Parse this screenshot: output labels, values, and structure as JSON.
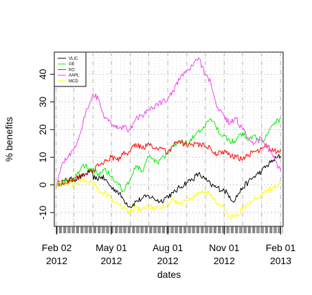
{
  "chart_data": {
    "type": "line",
    "title": "",
    "xlabel": "dates",
    "ylabel": "% benefits",
    "x_ticks": [
      {
        "date": "2012-02-02",
        "line1": "Feb 02",
        "line2": "2012"
      },
      {
        "date": "2012-05-01",
        "line1": "May 01",
        "line2": "2012"
      },
      {
        "date": "2012-08-01",
        "line1": "Aug 01",
        "line2": "2012"
      },
      {
        "date": "2012-11-01",
        "line1": "Nov 01",
        "line2": "2012"
      },
      {
        "date": "2013-02-01",
        "line1": "Feb 01",
        "line2": "2013"
      }
    ],
    "y_ticks": [
      "-10",
      "0",
      "10",
      "20",
      "30",
      "40"
    ],
    "xlim": [
      "2012-01-29",
      "2013-02-05"
    ],
    "ylim": [
      -15,
      48
    ],
    "grid": true,
    "legend_position": "top-left",
    "series": [
      {
        "name": "VLIC",
        "color": "#000000",
        "points": [
          [
            "2012-02-01",
            0
          ],
          [
            "2012-02-15",
            1.5
          ],
          [
            "2012-03-01",
            2
          ],
          [
            "2012-03-15",
            3
          ],
          [
            "2012-03-27",
            5
          ],
          [
            "2012-04-05",
            2
          ],
          [
            "2012-04-15",
            3
          ],
          [
            "2012-04-25",
            1
          ],
          [
            "2012-05-01",
            -1
          ],
          [
            "2012-05-10",
            -2
          ],
          [
            "2012-05-20",
            -5
          ],
          [
            "2012-06-01",
            -8
          ],
          [
            "2012-06-10",
            -6
          ],
          [
            "2012-06-20",
            -5
          ],
          [
            "2012-07-01",
            -4
          ],
          [
            "2012-07-10",
            -5
          ],
          [
            "2012-07-20",
            -6
          ],
          [
            "2012-08-01",
            -4
          ],
          [
            "2012-08-10",
            -3
          ],
          [
            "2012-08-20",
            -1
          ],
          [
            "2012-09-01",
            1
          ],
          [
            "2012-09-10",
            2
          ],
          [
            "2012-09-20",
            4
          ],
          [
            "2012-10-01",
            2
          ],
          [
            "2012-10-10",
            0
          ],
          [
            "2012-10-20",
            -1
          ],
          [
            "2012-11-01",
            -2
          ],
          [
            "2012-11-10",
            -4
          ],
          [
            "2012-11-15",
            -6
          ],
          [
            "2012-11-25",
            -3
          ],
          [
            "2012-12-01",
            -1
          ],
          [
            "2012-12-10",
            1
          ],
          [
            "2012-12-20",
            3
          ],
          [
            "2013-01-01",
            5
          ],
          [
            "2013-01-10",
            7
          ],
          [
            "2013-01-20",
            9
          ],
          [
            "2013-02-01",
            10.5
          ]
        ]
      },
      {
        "name": "GE",
        "color": "#00ee00",
        "points": [
          [
            "2012-02-01",
            0
          ],
          [
            "2012-02-15",
            1
          ],
          [
            "2012-03-01",
            2
          ],
          [
            "2012-03-15",
            7
          ],
          [
            "2012-03-30",
            6
          ],
          [
            "2012-04-10",
            4
          ],
          [
            "2012-04-20",
            6
          ],
          [
            "2012-05-01",
            3
          ],
          [
            "2012-05-10",
            1
          ],
          [
            "2012-05-20",
            -2
          ],
          [
            "2012-06-01",
            2
          ],
          [
            "2012-06-10",
            7
          ],
          [
            "2012-06-20",
            5
          ],
          [
            "2012-07-01",
            10
          ],
          [
            "2012-07-15",
            8
          ],
          [
            "2012-08-01",
            11
          ],
          [
            "2012-08-10",
            14
          ],
          [
            "2012-08-20",
            16
          ],
          [
            "2012-09-01",
            15
          ],
          [
            "2012-09-15",
            18
          ],
          [
            "2012-10-01",
            21
          ],
          [
            "2012-10-10",
            24
          ],
          [
            "2012-10-20",
            20
          ],
          [
            "2012-11-01",
            18
          ],
          [
            "2012-11-10",
            16
          ],
          [
            "2012-11-20",
            16
          ],
          [
            "2012-12-01",
            19
          ],
          [
            "2012-12-10",
            16
          ],
          [
            "2012-12-20",
            18
          ],
          [
            "2013-01-01",
            16
          ],
          [
            "2013-01-10",
            18
          ],
          [
            "2013-01-20",
            22
          ],
          [
            "2013-02-01",
            24
          ]
        ]
      },
      {
        "name": "KO",
        "color": "#ff0000",
        "points": [
          [
            "2012-02-01",
            0
          ],
          [
            "2012-02-15",
            1
          ],
          [
            "2012-03-01",
            2
          ],
          [
            "2012-03-15",
            4
          ],
          [
            "2012-04-01",
            5
          ],
          [
            "2012-04-15",
            8
          ],
          [
            "2012-05-01",
            10
          ],
          [
            "2012-05-10",
            9
          ],
          [
            "2012-05-20",
            11
          ],
          [
            "2012-06-01",
            12
          ],
          [
            "2012-06-10",
            15
          ],
          [
            "2012-06-20",
            13
          ],
          [
            "2012-07-01",
            15
          ],
          [
            "2012-07-15",
            13
          ],
          [
            "2012-08-01",
            12
          ],
          [
            "2012-08-10",
            14
          ],
          [
            "2012-08-20",
            16
          ],
          [
            "2012-09-01",
            14
          ],
          [
            "2012-09-15",
            15
          ],
          [
            "2012-10-01",
            14
          ],
          [
            "2012-10-10",
            13
          ],
          [
            "2012-10-20",
            11
          ],
          [
            "2012-11-01",
            12
          ],
          [
            "2012-11-10",
            11
          ],
          [
            "2012-11-20",
            10
          ],
          [
            "2012-12-01",
            9
          ],
          [
            "2012-12-10",
            11
          ],
          [
            "2012-12-20",
            12
          ],
          [
            "2013-01-01",
            13
          ],
          [
            "2013-01-10",
            14
          ],
          [
            "2013-01-20",
            12
          ],
          [
            "2013-02-01",
            13
          ]
        ]
      },
      {
        "name": "AAPL",
        "color": "#ee44ee",
        "points": [
          [
            "2012-02-01",
            0
          ],
          [
            "2012-02-10",
            7
          ],
          [
            "2012-02-20",
            10
          ],
          [
            "2012-03-01",
            13
          ],
          [
            "2012-03-10",
            18
          ],
          [
            "2012-03-20",
            26
          ],
          [
            "2012-04-01",
            33
          ],
          [
            "2012-04-10",
            31
          ],
          [
            "2012-04-20",
            24
          ],
          [
            "2012-05-01",
            22
          ],
          [
            "2012-05-15",
            21
          ],
          [
            "2012-06-01",
            20
          ],
          [
            "2012-06-10",
            24
          ],
          [
            "2012-06-20",
            25
          ],
          [
            "2012-07-01",
            27
          ],
          [
            "2012-07-15",
            29
          ],
          [
            "2012-08-01",
            31
          ],
          [
            "2012-08-10",
            34
          ],
          [
            "2012-08-20",
            38
          ],
          [
            "2012-09-01",
            41
          ],
          [
            "2012-09-10",
            43
          ],
          [
            "2012-09-20",
            46
          ],
          [
            "2012-10-01",
            40
          ],
          [
            "2012-10-10",
            37
          ],
          [
            "2012-10-20",
            28
          ],
          [
            "2012-11-01",
            25
          ],
          [
            "2012-11-10",
            22
          ],
          [
            "2012-11-20",
            24
          ],
          [
            "2012-12-01",
            20
          ],
          [
            "2012-12-10",
            17
          ],
          [
            "2012-12-20",
            15
          ],
          [
            "2013-01-01",
            17
          ],
          [
            "2013-01-10",
            14
          ],
          [
            "2013-01-20",
            10
          ],
          [
            "2013-02-01",
            5
          ]
        ]
      },
      {
        "name": "MCD",
        "color": "#ffff00",
        "points": [
          [
            "2012-02-01",
            0
          ],
          [
            "2012-02-15",
            1
          ],
          [
            "2012-03-01",
            0
          ],
          [
            "2012-03-15",
            2
          ],
          [
            "2012-04-01",
            1
          ],
          [
            "2012-04-10",
            -2
          ],
          [
            "2012-04-20",
            -3
          ],
          [
            "2012-05-01",
            -5
          ],
          [
            "2012-05-15",
            -7
          ],
          [
            "2012-06-01",
            -10
          ],
          [
            "2012-06-10",
            -8
          ],
          [
            "2012-06-20",
            -9
          ],
          [
            "2012-07-01",
            -8
          ],
          [
            "2012-07-15",
            -8
          ],
          [
            "2012-08-01",
            -7
          ],
          [
            "2012-08-10",
            -5
          ],
          [
            "2012-08-20",
            -7
          ],
          [
            "2012-09-01",
            -6
          ],
          [
            "2012-09-15",
            -4
          ],
          [
            "2012-10-01",
            -2
          ],
          [
            "2012-10-10",
            -4
          ],
          [
            "2012-10-20",
            -7
          ],
          [
            "2012-11-01",
            -8
          ],
          [
            "2012-11-10",
            -12
          ],
          [
            "2012-11-20",
            -11
          ],
          [
            "2012-12-01",
            -9
          ],
          [
            "2012-12-10",
            -7
          ],
          [
            "2012-12-20",
            -5
          ],
          [
            "2013-01-01",
            -4
          ],
          [
            "2013-01-10",
            -2
          ],
          [
            "2013-01-20",
            -1
          ],
          [
            "2013-02-01",
            1
          ]
        ]
      }
    ]
  }
}
